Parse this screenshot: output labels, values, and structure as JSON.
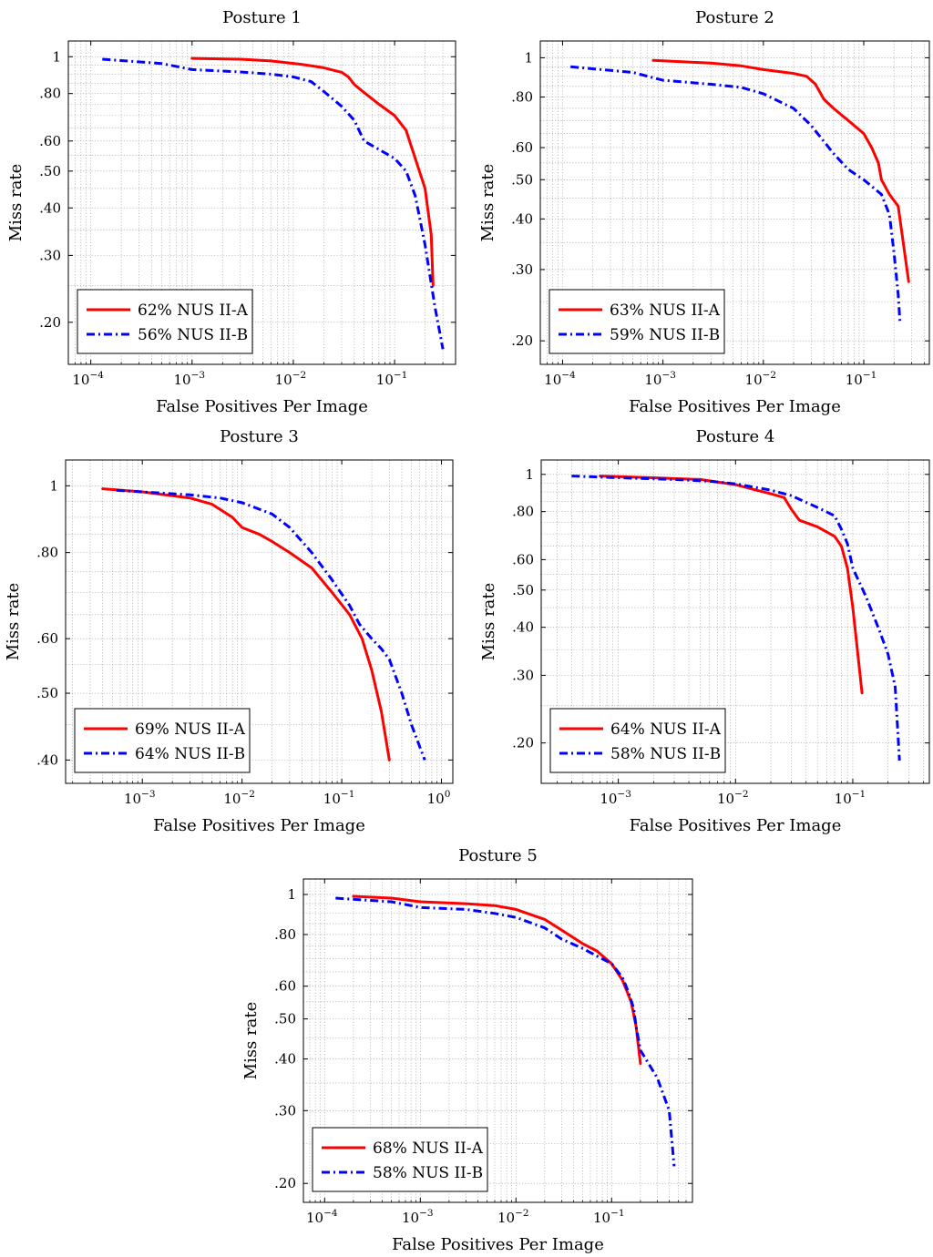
{
  "colors": {
    "series_a": "#ff0000",
    "series_b": "#0000ff",
    "grid": "#9a9a9a"
  },
  "chart_data": [
    {
      "type": "line",
      "title": "Posture 1",
      "xlabel": "False Positives Per Image",
      "ylabel": "Miss rate",
      "xscale": "log",
      "yscale": "log",
      "xlim": [
        6e-05,
        0.4
      ],
      "ylim": [
        0.155,
        1.1
      ],
      "xticks": [
        0.0001,
        0.001,
        0.01,
        0.1
      ],
      "xtick_labels": [
        "10",
        "10",
        "10",
        "10"
      ],
      "xtick_exponents": [
        "−4",
        "−3",
        "−2",
        "−1"
      ],
      "yticks": [
        1,
        0.8,
        0.6,
        0.5,
        0.4,
        0.3,
        0.2
      ],
      "ytick_labels": [
        "1",
        ".80",
        ".60",
        ".50",
        ".40",
        ".30",
        ".20"
      ],
      "grid": true,
      "legend": "bottom-left",
      "series": [
        {
          "name": "62% NUS II-A",
          "style": "solid",
          "x": [
            0.001,
            0.003,
            0.006,
            0.012,
            0.02,
            0.03,
            0.035,
            0.04,
            0.05,
            0.07,
            0.1,
            0.13,
            0.2,
            0.23,
            0.24
          ],
          "y": [
            0.99,
            0.985,
            0.975,
            0.955,
            0.935,
            0.91,
            0.885,
            0.845,
            0.805,
            0.75,
            0.7,
            0.64,
            0.45,
            0.34,
            0.25
          ]
        },
        {
          "name": "56% NUS II-B",
          "style": "dashdot",
          "x": [
            0.00013,
            0.0005,
            0.001,
            0.003,
            0.006,
            0.01,
            0.015,
            0.02,
            0.03,
            0.04,
            0.05,
            0.07,
            0.1,
            0.13,
            0.16,
            0.2,
            0.25,
            0.3
          ],
          "y": [
            0.985,
            0.96,
            0.925,
            0.912,
            0.9,
            0.885,
            0.86,
            0.81,
            0.74,
            0.68,
            0.6,
            0.57,
            0.54,
            0.5,
            0.43,
            0.32,
            0.22,
            0.17
          ]
        }
      ]
    },
    {
      "type": "line",
      "title": "Posture 2",
      "xlabel": "False Positives Per Image",
      "ylabel": "Miss rate",
      "xscale": "log",
      "yscale": "log",
      "xlim": [
        6e-05,
        0.45
      ],
      "ylim": [
        0.175,
        1.1
      ],
      "xticks": [
        0.0001,
        0.001,
        0.01,
        0.1
      ],
      "xtick_labels": [
        "10",
        "10",
        "10",
        "10"
      ],
      "xtick_exponents": [
        "−4",
        "−3",
        "−2",
        "−1"
      ],
      "yticks": [
        1,
        0.8,
        0.6,
        0.5,
        0.4,
        0.3,
        0.2
      ],
      "ytick_labels": [
        "1",
        ".80",
        ".60",
        ".50",
        ".40",
        ".30",
        ".20"
      ],
      "grid": true,
      "legend": "bottom-left",
      "series": [
        {
          "name": "63% NUS II-A",
          "style": "solid",
          "x": [
            0.0008,
            0.003,
            0.006,
            0.01,
            0.02,
            0.027,
            0.033,
            0.04,
            0.05,
            0.07,
            0.1,
            0.12,
            0.14,
            0.15,
            0.18,
            0.22,
            0.28
          ],
          "y": [
            0.985,
            0.97,
            0.955,
            0.935,
            0.915,
            0.9,
            0.86,
            0.79,
            0.75,
            0.7,
            0.65,
            0.6,
            0.55,
            0.5,
            0.46,
            0.43,
            0.28
          ]
        },
        {
          "name": "59% NUS II-B",
          "style": "dashdot",
          "x": [
            0.00012,
            0.0005,
            0.001,
            0.003,
            0.006,
            0.01,
            0.02,
            0.03,
            0.05,
            0.07,
            0.1,
            0.15,
            0.18,
            0.2,
            0.22,
            0.23
          ],
          "y": [
            0.95,
            0.92,
            0.88,
            0.86,
            0.845,
            0.815,
            0.75,
            0.68,
            0.58,
            0.53,
            0.5,
            0.46,
            0.41,
            0.33,
            0.26,
            0.22
          ]
        }
      ]
    },
    {
      "type": "line",
      "title": "Posture 3",
      "xlabel": "False Positives Per Image",
      "ylabel": "Miss rate",
      "xscale": "log",
      "yscale": "log",
      "xlim": [
        0.00017,
        1.3
      ],
      "ylim": [
        0.37,
        1.09
      ],
      "xticks": [
        0.001,
        0.01,
        0.1,
        1
      ],
      "xtick_labels": [
        "10",
        "10",
        "10",
        "10"
      ],
      "xtick_exponents": [
        "−3",
        "−2",
        "−1",
        "0"
      ],
      "yticks": [
        1,
        0.8,
        0.6,
        0.5,
        0.4
      ],
      "ytick_labels": [
        "1",
        ".80",
        ".60",
        ".50",
        ".40"
      ],
      "grid": true,
      "legend": "bottom-left",
      "series": [
        {
          "name": "69% NUS II-A",
          "style": "solid",
          "x": [
            0.0004,
            0.001,
            0.003,
            0.005,
            0.008,
            0.01,
            0.015,
            0.02,
            0.03,
            0.05,
            0.08,
            0.12,
            0.16,
            0.2,
            0.25,
            0.3
          ],
          "y": [
            0.99,
            0.98,
            0.96,
            0.94,
            0.9,
            0.87,
            0.85,
            0.83,
            0.8,
            0.76,
            0.7,
            0.65,
            0.6,
            0.54,
            0.47,
            0.4
          ]
        },
        {
          "name": "64% NUS II-B",
          "style": "dashdot",
          "x": [
            0.00055,
            0.001,
            0.003,
            0.006,
            0.01,
            0.02,
            0.03,
            0.05,
            0.08,
            0.12,
            0.15,
            0.2,
            0.25,
            0.3,
            0.4,
            0.5,
            0.68
          ],
          "y": [
            0.985,
            0.98,
            0.97,
            0.96,
            0.945,
            0.91,
            0.87,
            0.8,
            0.73,
            0.67,
            0.63,
            0.6,
            0.58,
            0.56,
            0.5,
            0.45,
            0.4
          ]
        }
      ]
    },
    {
      "type": "line",
      "title": "Posture 4",
      "xlabel": "False Positives Per Image",
      "ylabel": "Miss rate",
      "xscale": "log",
      "yscale": "log",
      "xlim": [
        0.00022,
        0.45
      ],
      "ylim": [
        0.157,
        1.09
      ],
      "xticks": [
        0.001,
        0.01,
        0.1
      ],
      "xtick_labels": [
        "10",
        "10",
        "10"
      ],
      "xtick_exponents": [
        "−3",
        "−2",
        "−1"
      ],
      "yticks": [
        1,
        0.8,
        0.6,
        0.5,
        0.4,
        0.3,
        0.2
      ],
      "ytick_labels": [
        "1",
        ".80",
        ".60",
        ".50",
        ".40",
        ".30",
        ".20"
      ],
      "grid": true,
      "legend": "bottom-left",
      "series": [
        {
          "name": "64% NUS II-A",
          "style": "solid",
          "x": [
            0.0007,
            0.002,
            0.005,
            0.01,
            0.015,
            0.02,
            0.026,
            0.03,
            0.035,
            0.05,
            0.07,
            0.08,
            0.09,
            0.1,
            0.12
          ],
          "y": [
            0.99,
            0.98,
            0.97,
            0.94,
            0.91,
            0.89,
            0.87,
            0.81,
            0.76,
            0.73,
            0.69,
            0.65,
            0.57,
            0.45,
            0.27
          ]
        },
        {
          "name": "58% NUS II-B",
          "style": "dashdot",
          "x": [
            0.0004,
            0.001,
            0.003,
            0.006,
            0.01,
            0.02,
            0.03,
            0.05,
            0.07,
            0.08,
            0.09,
            0.1,
            0.13,
            0.17,
            0.2,
            0.23,
            0.25
          ],
          "y": [
            0.99,
            0.98,
            0.97,
            0.96,
            0.945,
            0.91,
            0.88,
            0.82,
            0.78,
            0.72,
            0.66,
            0.57,
            0.48,
            0.39,
            0.34,
            0.28,
            0.18
          ]
        }
      ]
    },
    {
      "type": "line",
      "title": "Posture 5",
      "xlabel": "False Positives Per Image",
      "ylabel": "Miss rate",
      "xscale": "log",
      "yscale": "log",
      "xlim": [
        6e-05,
        0.7
      ],
      "ylim": [
        0.18,
        1.09
      ],
      "xticks": [
        0.0001,
        0.001,
        0.01,
        0.1
      ],
      "xtick_labels": [
        "10",
        "10",
        "10",
        "10"
      ],
      "xtick_exponents": [
        "−4",
        "−3",
        "−2",
        "−1"
      ],
      "yticks": [
        1,
        0.8,
        0.6,
        0.5,
        0.4,
        0.3,
        0.2
      ],
      "ytick_labels": [
        "1",
        ".80",
        ".60",
        ".50",
        ".40",
        ".30",
        ".20"
      ],
      "grid": true,
      "legend": "bottom-left",
      "series": [
        {
          "name": "68% NUS II-A",
          "style": "solid",
          "x": [
            0.0002,
            0.0005,
            0.001,
            0.003,
            0.006,
            0.01,
            0.02,
            0.03,
            0.05,
            0.07,
            0.1,
            0.13,
            0.16,
            0.18,
            0.2
          ],
          "y": [
            0.99,
            0.98,
            0.96,
            0.95,
            0.94,
            0.92,
            0.87,
            0.82,
            0.76,
            0.73,
            0.68,
            0.62,
            0.55,
            0.48,
            0.39
          ]
        },
        {
          "name": "58% NUS II-B",
          "style": "dashdot",
          "x": [
            0.00013,
            0.0005,
            0.001,
            0.003,
            0.006,
            0.01,
            0.02,
            0.03,
            0.05,
            0.07,
            0.1,
            0.13,
            0.15,
            0.17,
            0.18,
            0.2,
            0.3,
            0.4,
            0.45
          ],
          "y": [
            0.98,
            0.96,
            0.93,
            0.92,
            0.9,
            0.88,
            0.83,
            0.78,
            0.74,
            0.71,
            0.68,
            0.63,
            0.58,
            0.53,
            0.48,
            0.42,
            0.36,
            0.3,
            0.22
          ]
        }
      ]
    }
  ]
}
